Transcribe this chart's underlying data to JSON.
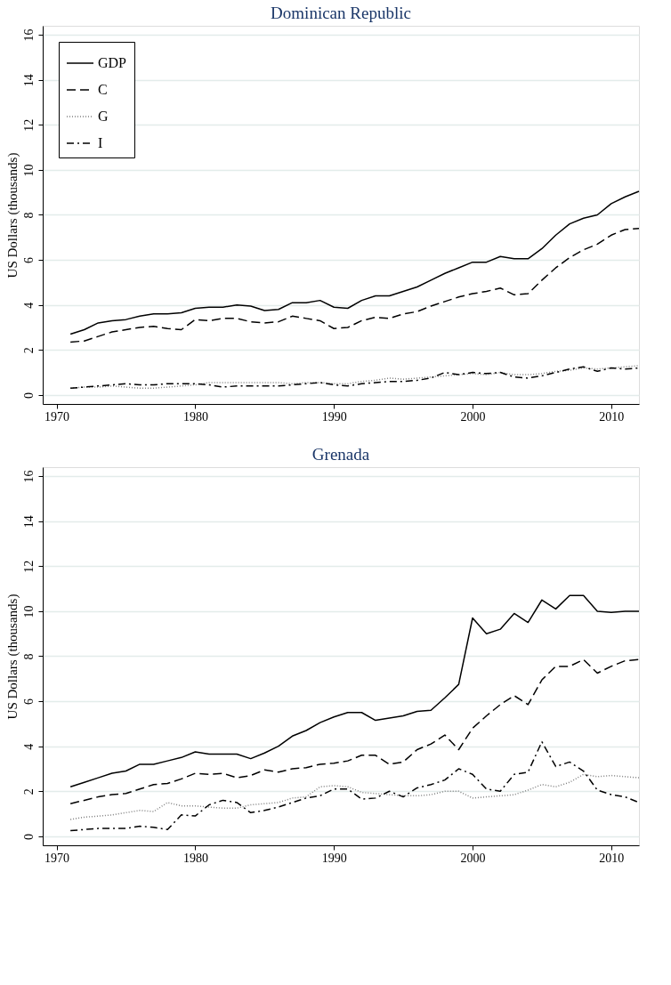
{
  "chart_data": [
    {
      "type": "line",
      "title": "Dominican Republic",
      "ylabel": "US Dollars (thousands)",
      "x": [
        1971,
        1972,
        1973,
        1974,
        1975,
        1976,
        1977,
        1978,
        1979,
        1980,
        1981,
        1982,
        1983,
        1984,
        1985,
        1986,
        1987,
        1988,
        1989,
        1990,
        1991,
        1992,
        1993,
        1994,
        1995,
        1996,
        1997,
        1998,
        1999,
        2000,
        2001,
        2002,
        2003,
        2004,
        2005,
        2006,
        2007,
        2008,
        2009,
        2010,
        2011,
        2012
      ],
      "xlim": [
        1969,
        2012
      ],
      "xticks": [
        1970,
        1980,
        1990,
        2000,
        2010
      ],
      "ylim": [
        -0.4,
        16.4
      ],
      "yticks": [
        0,
        2,
        4,
        6,
        8,
        10,
        12,
        14,
        16
      ],
      "grid": "y",
      "legend": "top left",
      "marker": "none",
      "series": [
        {
          "name": "GDP",
          "color": "#000000",
          "line_style": "solid",
          "values": [
            2.7,
            2.9,
            3.2,
            3.3,
            3.35,
            3.5,
            3.6,
            3.6,
            3.65,
            3.85,
            3.9,
            3.9,
            4.0,
            3.95,
            3.75,
            3.8,
            4.1,
            4.1,
            4.2,
            3.9,
            3.85,
            4.2,
            4.4,
            4.4,
            4.6,
            4.8,
            5.1,
            5.4,
            5.65,
            5.9,
            5.9,
            6.15,
            6.05,
            6.05,
            6.5,
            7.1,
            7.6,
            7.85,
            8.0,
            8.5,
            8.8,
            9.05
          ]
        },
        {
          "name": "C",
          "color": "#000000",
          "line_style": "dashed",
          "values": [
            2.35,
            2.4,
            2.6,
            2.8,
            2.9,
            3.0,
            3.05,
            2.95,
            2.9,
            3.35,
            3.3,
            3.4,
            3.4,
            3.25,
            3.2,
            3.25,
            3.5,
            3.4,
            3.3,
            2.95,
            3.0,
            3.3,
            3.45,
            3.4,
            3.6,
            3.7,
            3.95,
            4.15,
            4.35,
            4.5,
            4.6,
            4.75,
            4.45,
            4.5,
            5.1,
            5.65,
            6.1,
            6.45,
            6.7,
            7.1,
            7.35,
            7.4
          ]
        },
        {
          "name": "G",
          "color": "#808080",
          "line_style": "dotted",
          "values": [
            0.3,
            0.35,
            0.35,
            0.4,
            0.35,
            0.3,
            0.3,
            0.35,
            0.4,
            0.45,
            0.55,
            0.55,
            0.55,
            0.55,
            0.55,
            0.55,
            0.5,
            0.55,
            0.55,
            0.5,
            0.5,
            0.6,
            0.65,
            0.75,
            0.7,
            0.75,
            0.8,
            0.85,
            0.9,
            0.95,
            0.9,
            1.0,
            0.9,
            0.9,
            0.95,
            1.05,
            1.1,
            1.2,
            1.15,
            1.2,
            1.25,
            1.3
          ]
        },
        {
          "name": "I",
          "color": "#000000",
          "line_style": "dashdot",
          "values": [
            0.3,
            0.35,
            0.4,
            0.45,
            0.5,
            0.45,
            0.45,
            0.5,
            0.5,
            0.5,
            0.45,
            0.35,
            0.4,
            0.4,
            0.4,
            0.4,
            0.45,
            0.5,
            0.55,
            0.45,
            0.4,
            0.5,
            0.55,
            0.6,
            0.6,
            0.65,
            0.75,
            1.0,
            0.9,
            1.0,
            0.95,
            1.0,
            0.8,
            0.75,
            0.85,
            1.0,
            1.15,
            1.25,
            1.05,
            1.2,
            1.15,
            1.2
          ]
        }
      ]
    },
    {
      "type": "line",
      "title": "Grenada",
      "ylabel": "US Dollars (thousands)",
      "x": [
        1971,
        1972,
        1973,
        1974,
        1975,
        1976,
        1977,
        1978,
        1979,
        1980,
        1981,
        1982,
        1983,
        1984,
        1985,
        1986,
        1987,
        1988,
        1989,
        1990,
        1991,
        1992,
        1993,
        1994,
        1995,
        1996,
        1997,
        1998,
        1999,
        2000,
        2001,
        2002,
        2003,
        2004,
        2005,
        2006,
        2007,
        2008,
        2009,
        2010,
        2011,
        2012
      ],
      "xlim": [
        1969,
        2012
      ],
      "xticks": [
        1970,
        1980,
        1990,
        2000,
        2010
      ],
      "ylim": [
        -0.4,
        16.4
      ],
      "yticks": [
        0,
        2,
        4,
        6,
        8,
        10,
        12,
        14,
        16
      ],
      "grid": "y",
      "legend": "top left",
      "marker": "none",
      "series": [
        {
          "name": "GDP",
          "color": "#000000",
          "line_style": "solid",
          "values": [
            2.2,
            2.4,
            2.6,
            2.8,
            2.9,
            3.2,
            3.2,
            3.35,
            3.5,
            3.75,
            3.65,
            3.65,
            3.65,
            3.45,
            3.7,
            4.0,
            4.45,
            4.7,
            5.05,
            5.3,
            5.5,
            5.5,
            5.15,
            5.25,
            5.35,
            5.55,
            5.6,
            6.15,
            6.75,
            9.7,
            9.0,
            9.2,
            9.9,
            9.5,
            10.5,
            10.1,
            10.7,
            10.7,
            10.0,
            9.95,
            10.0,
            10.0
          ]
        },
        {
          "name": "C",
          "color": "#000000",
          "line_style": "dashed",
          "values": [
            1.45,
            1.6,
            1.75,
            1.85,
            1.9,
            2.1,
            2.3,
            2.35,
            2.55,
            2.8,
            2.75,
            2.8,
            2.6,
            2.7,
            2.95,
            2.85,
            3.0,
            3.05,
            3.2,
            3.25,
            3.35,
            3.6,
            3.6,
            3.2,
            3.3,
            3.85,
            4.1,
            4.5,
            3.85,
            4.8,
            5.35,
            5.85,
            6.25,
            5.85,
            6.95,
            7.55,
            7.55,
            7.85,
            7.25,
            7.55,
            7.8,
            7.85
          ]
        },
        {
          "name": "G",
          "color": "#808080",
          "line_style": "dotted",
          "values": [
            0.75,
            0.85,
            0.9,
            0.95,
            1.05,
            1.15,
            1.1,
            1.5,
            1.35,
            1.35,
            1.3,
            1.25,
            1.25,
            1.4,
            1.45,
            1.5,
            1.7,
            1.75,
            2.2,
            2.25,
            2.2,
            1.95,
            1.9,
            1.85,
            1.8,
            1.8,
            1.85,
            2.0,
            2.0,
            1.7,
            1.75,
            1.8,
            1.85,
            2.05,
            2.3,
            2.2,
            2.4,
            2.75,
            2.65,
            2.7,
            2.65,
            2.6
          ]
        },
        {
          "name": "I",
          "color": "#000000",
          "line_style": "dashdot",
          "values": [
            0.25,
            0.3,
            0.35,
            0.35,
            0.35,
            0.45,
            0.4,
            0.3,
            0.95,
            0.9,
            1.4,
            1.6,
            1.5,
            1.05,
            1.15,
            1.3,
            1.5,
            1.7,
            1.8,
            2.1,
            2.1,
            1.65,
            1.7,
            2.0,
            1.75,
            2.15,
            2.3,
            2.5,
            3.0,
            2.75,
            2.1,
            2.0,
            2.75,
            2.85,
            4.2,
            3.1,
            3.3,
            2.9,
            2.05,
            1.85,
            1.75,
            1.5
          ]
        }
      ]
    }
  ]
}
